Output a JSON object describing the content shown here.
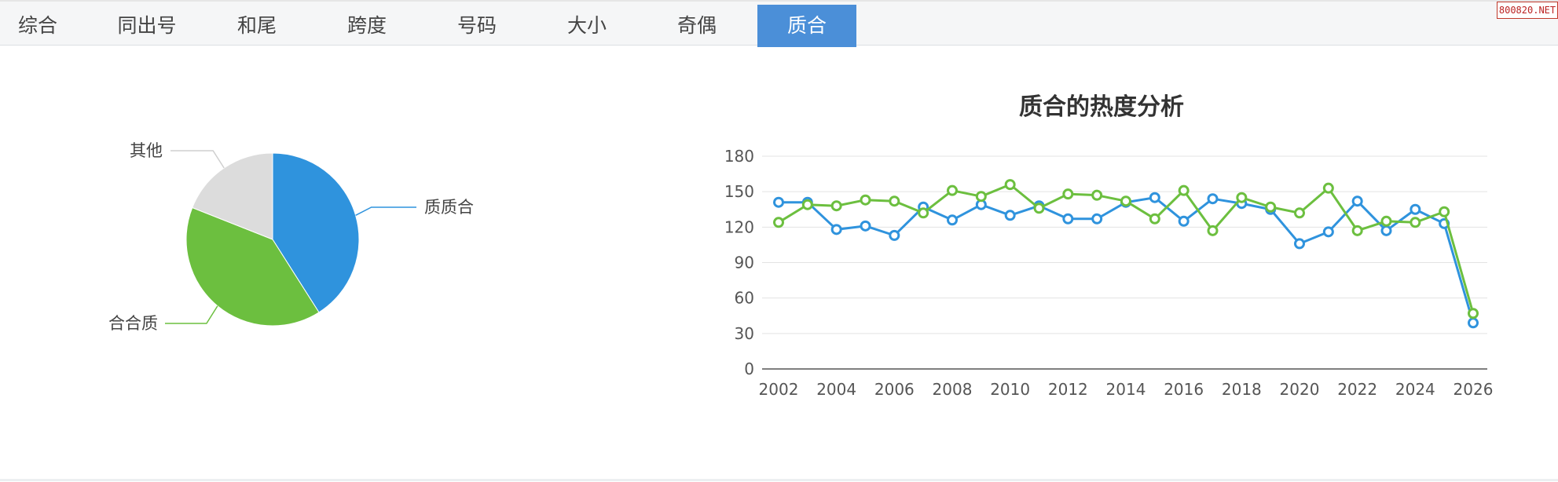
{
  "tabs": [
    {
      "label": "综合"
    },
    {
      "label": "同出号"
    },
    {
      "label": "和尾"
    },
    {
      "label": "跨度"
    },
    {
      "label": "号码"
    },
    {
      "label": "大小"
    },
    {
      "label": "奇偶"
    },
    {
      "label": "质合",
      "active": true
    }
  ],
  "badge": "800820.NET",
  "colors": {
    "blue": "#2f93dd",
    "green": "#6cbf3f",
    "gray": "#dcdcdc"
  },
  "chart_data": [
    {
      "type": "pie",
      "slices": [
        {
          "label": "质质合",
          "value": 41,
          "color": "#2f93dd"
        },
        {
          "label": "合合质",
          "value": 40,
          "color": "#6cbf3f"
        },
        {
          "label": "其他",
          "value": 19,
          "color": "#dcdcdc"
        }
      ]
    },
    {
      "type": "line",
      "title": "质合的热度分析",
      "x": [
        2002,
        2003,
        2004,
        2005,
        2006,
        2007,
        2008,
        2009,
        2010,
        2011,
        2012,
        2013,
        2014,
        2015,
        2016,
        2017,
        2018,
        2019,
        2020,
        2021,
        2022,
        2023,
        2024,
        2025,
        2026
      ],
      "xticks": [
        "2002",
        "2004",
        "2006",
        "2008",
        "2010",
        "2012",
        "2014",
        "2016",
        "2018",
        "2020",
        "2022",
        "2024",
        "2026"
      ],
      "ylim": [
        0,
        180
      ],
      "yticks": [
        "0",
        "30",
        "60",
        "90",
        "120",
        "150",
        "180"
      ],
      "grid": true,
      "series": [
        {
          "color": "#2f93dd",
          "values": [
            141,
            141,
            118,
            121,
            113,
            137,
            126,
            139,
            130,
            138,
            127,
            127,
            141,
            145,
            125,
            144,
            140,
            135,
            106,
            116,
            142,
            117,
            135,
            123,
            39
          ]
        },
        {
          "color": "#6cbf3f",
          "values": [
            124,
            139,
            138,
            143,
            142,
            132,
            151,
            146,
            156,
            136,
            148,
            147,
            142,
            127,
            151,
            117,
            145,
            137,
            132,
            153,
            117,
            125,
            124,
            133,
            47
          ]
        }
      ]
    }
  ]
}
